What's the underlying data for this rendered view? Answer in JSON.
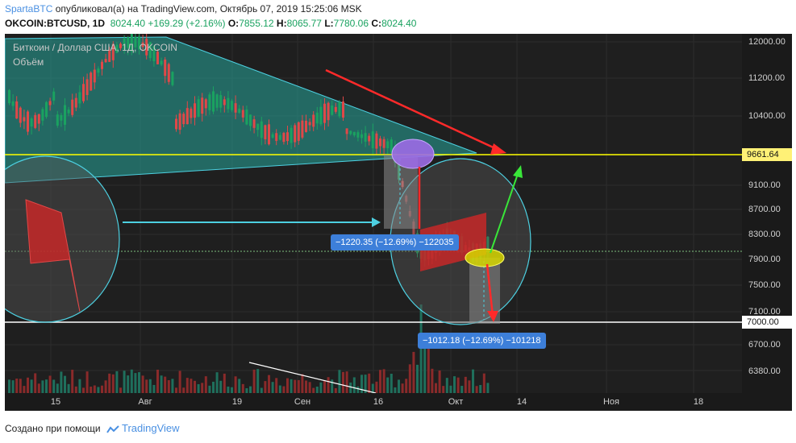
{
  "header": {
    "publisher": "SpartaBTC",
    "published_text": "опубликовал(а) на TradingView.com, Октябрь 07, 2019 15:25:06 MSK",
    "symbol": "OKCOIN:BTCUSD, 1D",
    "last": "8024.40",
    "change": "+169.29 (+2.16%)",
    "open_label": "O:",
    "open": "7855.12",
    "high_label": "H:",
    "high": "8065.77",
    "low_label": "L:",
    "low": "7780.06",
    "close_label": "C:",
    "close": "8024.40"
  },
  "chart": {
    "title": "Биткоин / Доллар США, 1Д, OKCOIN",
    "volume_label": "Объём"
  },
  "yaxis": {
    "ticks": [
      "12000.00",
      "11200.00",
      "10400.00",
      "9100.00",
      "8700.00",
      "8300.00",
      "7900.00",
      "7500.00",
      "7100.00",
      "6700.00",
      "6380.00"
    ]
  },
  "price_labels": {
    "level_upper": "9661.64",
    "level_lower": "7000.00"
  },
  "xaxis": {
    "ticks": [
      "15",
      "Авг",
      "19",
      "Сен",
      "16",
      "Окт",
      "14",
      "Ноя",
      "18"
    ]
  },
  "measurements": {
    "upper": "−1220.35 (−12.69%) −122035",
    "lower": "−1012.18 (−12.69%) −101218"
  },
  "footer": {
    "made_with": "Создано при помощи",
    "brand": "TradingView"
  },
  "colors": {
    "up": "#26a69a",
    "up_bright": "#1aa260",
    "down": "#e04848",
    "triangle": "#26a69a",
    "level_upper": "#ffff00",
    "level_lower": "#ffffff",
    "circle": "#4dd0e1",
    "arrow_red": "#ff2a2a",
    "arrow_green": "#39e639",
    "measure_bg": "#3d7fd9"
  }
}
